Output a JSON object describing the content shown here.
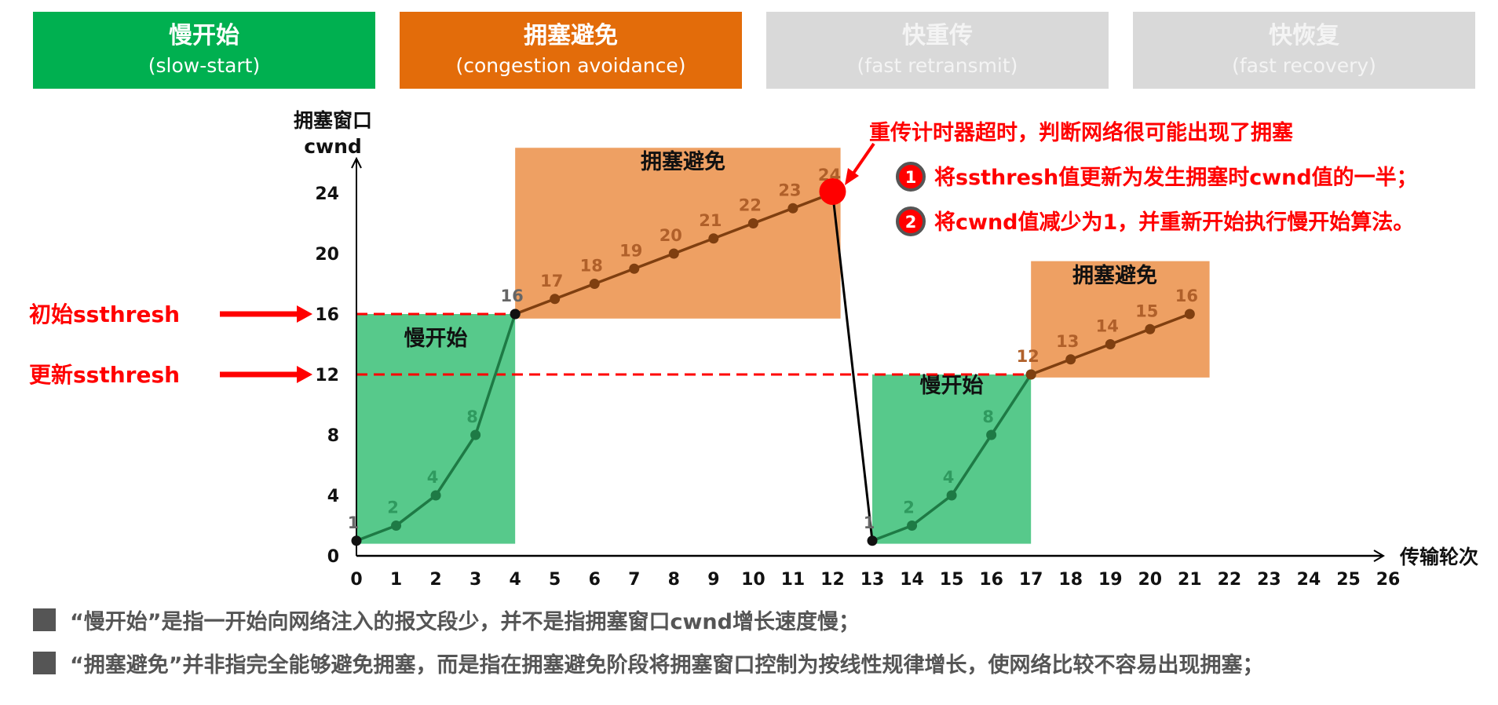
{
  "phases": [
    {
      "zh": "慢开始",
      "en": "(slow-start)",
      "color": "#00b050"
    },
    {
      "zh": "拥塞避免",
      "en": "(congestion avoidance)",
      "color": "#e36c0a"
    },
    {
      "zh": "快重传",
      "en": "(fast retransmit)",
      "color": "#d9d9d9"
    },
    {
      "zh": "快恢复",
      "en": "(fast recovery)",
      "color": "#d9d9d9"
    }
  ],
  "chart_data": {
    "type": "line",
    "ylabel_line1": "拥塞窗口",
    "ylabel_line2": "cwnd",
    "xlabel": "传输轮次",
    "xlim": [
      0,
      26
    ],
    "ylim": [
      0,
      24
    ],
    "x_ticks": [
      0,
      1,
      2,
      3,
      4,
      5,
      6,
      7,
      8,
      9,
      10,
      11,
      12,
      13,
      14,
      15,
      16,
      17,
      18,
      19,
      20,
      21,
      22,
      23,
      24,
      25,
      26
    ],
    "y_ticks": [
      0,
      4,
      8,
      12,
      16,
      20,
      24
    ],
    "series": [
      {
        "phase": "slow-start",
        "points": [
          [
            0,
            1
          ],
          [
            1,
            2
          ],
          [
            2,
            4
          ],
          [
            3,
            8
          ],
          [
            4,
            16
          ]
        ],
        "color": "#1e7a45",
        "label_color": "#2f9a5f"
      },
      {
        "phase": "congestion-avoidance",
        "points": [
          [
            4,
            16
          ],
          [
            5,
            17
          ],
          [
            6,
            18
          ],
          [
            7,
            19
          ],
          [
            8,
            20
          ],
          [
            9,
            21
          ],
          [
            10,
            22
          ],
          [
            11,
            23
          ],
          [
            12,
            24
          ]
        ],
        "color": "#7f3f10",
        "label_color": "#b0602a"
      },
      {
        "phase": "timeout",
        "points": [
          [
            12,
            24
          ],
          [
            13,
            1
          ]
        ],
        "color": "#000000"
      },
      {
        "phase": "slow-start",
        "points": [
          [
            13,
            1
          ],
          [
            14,
            2
          ],
          [
            15,
            4
          ],
          [
            16,
            8
          ],
          [
            17,
            12
          ]
        ],
        "color": "#1e7a45",
        "label_color": "#2f9a5f"
      },
      {
        "phase": "congestion-avoidance",
        "points": [
          [
            17,
            12
          ],
          [
            18,
            13
          ],
          [
            19,
            14
          ],
          [
            20,
            15
          ],
          [
            21,
            16
          ]
        ],
        "color": "#7f3f10",
        "label_color": "#b0602a"
      }
    ],
    "regions": [
      {
        "label": "慢开始",
        "x": [
          0,
          4
        ],
        "y": [
          0.8,
          16
        ],
        "color": "#57c98b"
      },
      {
        "label": "拥塞避免",
        "x": [
          4,
          12.2
        ],
        "y": [
          15.7,
          27
        ],
        "color": "#eea063"
      },
      {
        "label": "慢开始",
        "x": [
          13,
          17
        ],
        "y": [
          0.8,
          12
        ],
        "color": "#57c98b"
      },
      {
        "label": "拥塞避免",
        "x": [
          17,
          21.5
        ],
        "y": [
          11.8,
          19.5
        ],
        "color": "#eea063"
      }
    ],
    "thresholds": [
      {
        "label": "初始ssthresh",
        "value": 16,
        "x_end": 4
      },
      {
        "label": "更新ssthresh",
        "value": 12,
        "x_end": 17
      }
    ],
    "threshold_color": "#ff0000",
    "event": {
      "point": [
        12,
        24
      ],
      "title": "重传计时器超时，判断网络很可能出现了拥塞",
      "steps": [
        {
          "num": "1",
          "text": "将ssthresh值更新为发生拥塞时cwnd值的一半；"
        },
        {
          "num": "2",
          "text": "将cwnd值减少为1，并重新开始执行慢开始算法。"
        }
      ],
      "color": "#ff0000"
    }
  },
  "notes": [
    "“慢开始”是指一开始向网络注入的报文段少，并不是指拥塞窗口cwnd增长速度慢；",
    "“拥塞避免”并非指完全能够避免拥塞，而是指在拥塞避免阶段将拥塞窗口控制为按线性规律增长，使网络比较不容易出现拥塞；"
  ]
}
